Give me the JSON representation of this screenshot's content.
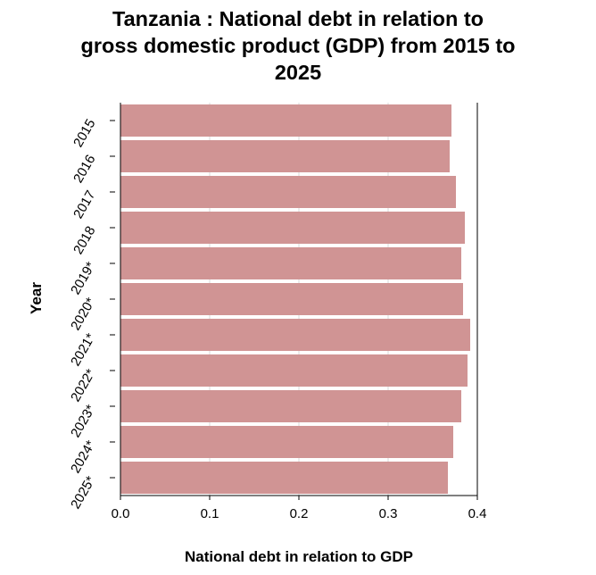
{
  "title_lines": [
    "Tanzania : National debt in relation to",
    "gross domestic product (GDP) from 2015 to",
    "2025"
  ],
  "chart_data": {
    "type": "bar",
    "orientation": "horizontal",
    "title": "Tanzania : National debt in relation to gross domestic product (GDP) from 2015 to 2025",
    "xlabel": "National debt in relation to GDP",
    "ylabel": "Year",
    "categories": [
      "2015",
      "2016",
      "2017",
      "2018",
      "2019*",
      "2020*",
      "2021*",
      "2022*",
      "2023*",
      "2024*",
      "2025*"
    ],
    "values": [
      0.371,
      0.369,
      0.376,
      0.386,
      0.382,
      0.384,
      0.392,
      0.389,
      0.382,
      0.373,
      0.367
    ],
    "xlim": [
      0,
      0.4
    ],
    "xticks": [
      "0.0",
      "0.1",
      "0.2",
      "0.3",
      "0.4"
    ],
    "xtick_values": [
      0,
      0.1,
      0.2,
      0.3,
      0.4
    ],
    "grid": "vertical",
    "legend": "none",
    "bar_color": "#d09494",
    "grid_color": "#d9d9d9"
  }
}
